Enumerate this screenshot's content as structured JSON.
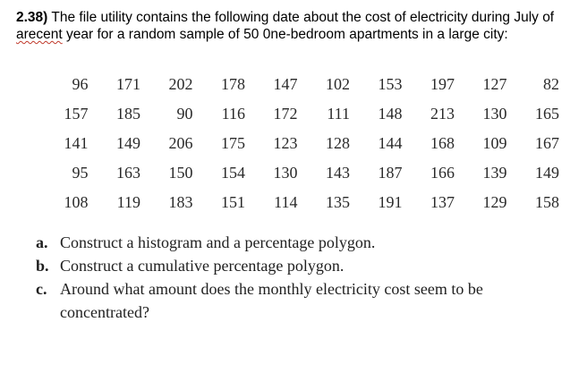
{
  "problem": {
    "number": "2.38)",
    "text_before": " The file utility contains the following date about the cost of electricity during July of ",
    "misspelled_word": "arecent",
    "text_after": " year for a random sample of 50 0ne-bedroom apartments in a large city:"
  },
  "table": {
    "rows": [
      [
        "96",
        "171",
        "202",
        "178",
        "147",
        "102",
        "153",
        "197",
        "127",
        "82"
      ],
      [
        "157",
        "185",
        "90",
        "116",
        "172",
        "111",
        "148",
        "213",
        "130",
        "165"
      ],
      [
        "141",
        "149",
        "206",
        "175",
        "123",
        "128",
        "144",
        "168",
        "109",
        "167"
      ],
      [
        "95",
        "163",
        "150",
        "154",
        "130",
        "143",
        "187",
        "166",
        "139",
        "149"
      ],
      [
        "108",
        "119",
        "183",
        "151",
        "114",
        "135",
        "191",
        "137",
        "129",
        "158"
      ]
    ]
  },
  "questions": [
    {
      "letter": "a.",
      "text": "Construct a histogram and a percentage polygon."
    },
    {
      "letter": "b.",
      "text": "Construct a cumulative percentage polygon."
    },
    {
      "letter": "c.",
      "text": "Around what amount does the monthly electricity cost seem to be concentrated?"
    }
  ]
}
